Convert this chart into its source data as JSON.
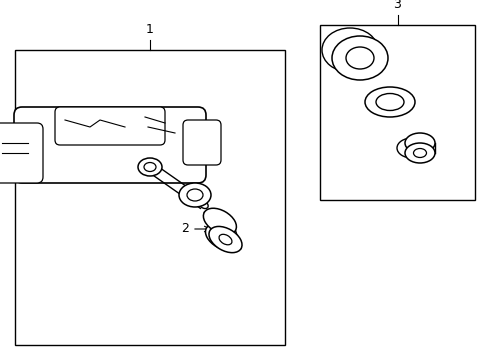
{
  "background_color": "#ffffff",
  "line_color": "#000000",
  "fig_width": 4.9,
  "fig_height": 3.6,
  "dpi": 100,
  "label1": "1",
  "label2": "2",
  "label3": "3"
}
